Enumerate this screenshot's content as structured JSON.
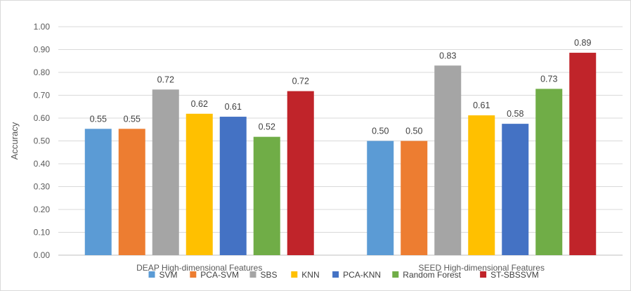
{
  "chart_data": {
    "type": "bar",
    "title": "",
    "xlabel": "",
    "ylabel": "Accuracy",
    "ylim": [
      0,
      1.0
    ],
    "yticks": [
      "0.00",
      "0.10",
      "0.20",
      "0.30",
      "0.40",
      "0.50",
      "0.60",
      "0.70",
      "0.80",
      "0.90",
      "1.00"
    ],
    "grid": "horizontal",
    "legend_position": "bottom",
    "categories": [
      "DEAP High-dimensional Features",
      "SEED High-dimensional Features"
    ],
    "series": [
      {
        "name": "SVM",
        "color": "#5B9BD5",
        "values": [
          0.553,
          0.5
        ],
        "labels": [
          "0.55",
          "0.50"
        ]
      },
      {
        "name": "PCA-SVM",
        "color": "#ED7D31",
        "values": [
          0.553,
          0.5
        ],
        "labels": [
          "0.55",
          "0.50"
        ]
      },
      {
        "name": "SBS",
        "color": "#A5A5A5",
        "values": [
          0.725,
          0.83
        ],
        "labels": [
          "0.72",
          "0.83"
        ]
      },
      {
        "name": "KNN",
        "color": "#FFC000",
        "values": [
          0.619,
          0.612
        ],
        "labels": [
          "0.62",
          "0.61"
        ]
      },
      {
        "name": "PCA-KNN",
        "color": "#4472C4",
        "values": [
          0.606,
          0.575
        ],
        "labels": [
          "0.61",
          "0.58"
        ]
      },
      {
        "name": "Random Forest",
        "color": "#70AD47",
        "values": [
          0.518,
          0.728
        ],
        "labels": [
          "0.52",
          "0.73"
        ]
      },
      {
        "name": "ST-SBSSVM",
        "color": "#C0242A",
        "values": [
          0.718,
          0.886
        ],
        "labels": [
          "0.72",
          "0.89"
        ]
      }
    ]
  }
}
